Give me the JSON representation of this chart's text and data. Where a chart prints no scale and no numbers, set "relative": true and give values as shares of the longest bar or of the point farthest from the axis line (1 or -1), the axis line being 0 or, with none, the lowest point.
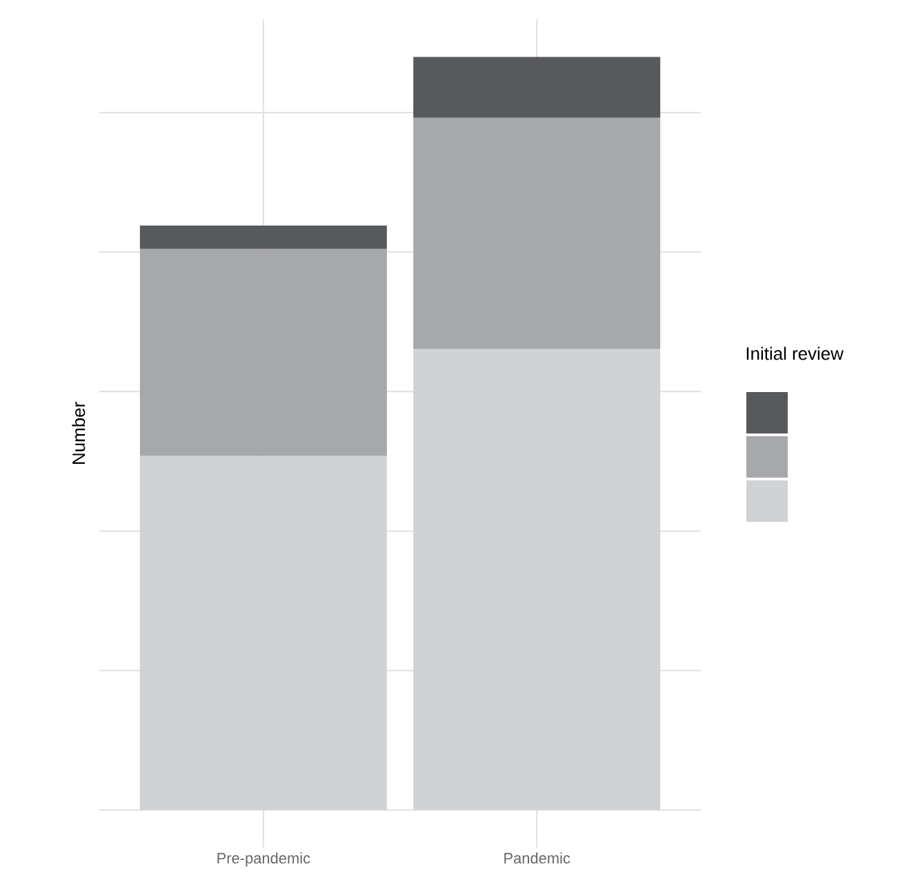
{
  "chart_data": {
    "type": "bar",
    "stacked": true,
    "relative": true,
    "ylabel": "Number",
    "legend_title": "Initial review",
    "grid": true,
    "categories": [
      "Pre-pandemic",
      "Pandemic"
    ],
    "series": [
      {
        "color": "#d1d2d4",
        "values": [
          0.47,
          0.612
        ]
      },
      {
        "color": "#a7a8ac",
        "values": [
          0.275,
          0.307
        ]
      },
      {
        "color": "#58595b",
        "values": [
          0.031,
          0.081
        ]
      }
    ]
  }
}
